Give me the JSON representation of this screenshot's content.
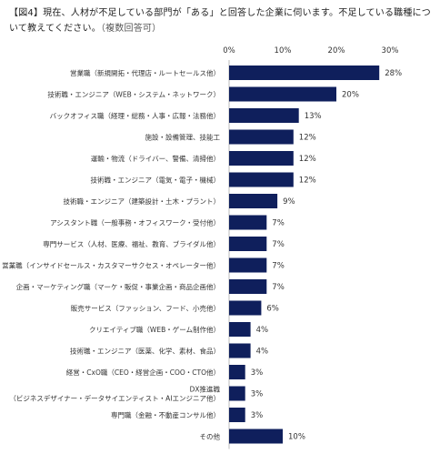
{
  "title": {
    "text": "【図4】現在、人材が不足している部門が「ある」と回答した企業に伺います。不足している職種について教えてください。",
    "note": "（複数回答可）"
  },
  "chart_data": {
    "type": "bar",
    "orientation": "horizontal",
    "xlim": [
      0,
      30
    ],
    "ticks": [
      "0%",
      "10%",
      "20%",
      "30%"
    ],
    "tick_values": [
      0,
      10,
      20,
      30
    ],
    "bar_color": "#0f1f5c",
    "categories": [
      "営業職（新規開拓・代理店・ルートセールス他）",
      "技術職・エンジニア（WEB・システム・ネットワーク）",
      "バックオフィス職（経理・総務・人事・広報・法務他）",
      "施設・設備管理、技能工",
      "運輸・物流（ドライバー、警備、清掃他）",
      "技術職・エンジニア（電気・電子・機械）",
      "技術職・エンジニア（建築設計・土木・プラント）",
      "アシスタント職（一般事務・オフィスワーク・受付他）",
      "専門サービス（人材、医療、福祉、教育、ブライダル他）",
      "営業職（インサイドセールス・カスタマーサクセス・オペレーター他）",
      "企画・マーケティング職（マーケ・販促・事業企画・商品企画他）",
      "販売サービス（ファッション、フード、小売他）",
      "クリエイティブ職（WEB・ゲーム制作他）",
      "技術職・エンジニア（医薬、化学、素材、食品）",
      "経営・CxO職（CEO・経営企画・COO・CTO他）",
      [
        "DX推進職",
        "（ビジネスデザイナー・データサイエンティスト・AIエンジニア他）"
      ],
      "専門職（金融・不動産コンサル他）",
      "その他"
    ],
    "values": [
      28,
      20,
      13,
      12,
      12,
      12,
      9,
      7,
      7,
      7,
      7,
      6,
      4,
      4,
      3,
      3,
      3,
      10
    ],
    "value_labels": [
      "28%",
      "20%",
      "13%",
      "12%",
      "12%",
      "12%",
      "9%",
      "7%",
      "7%",
      "7%",
      "7%",
      "6%",
      "4%",
      "4%",
      "3%",
      "3%",
      "3%",
      "10%"
    ]
  }
}
